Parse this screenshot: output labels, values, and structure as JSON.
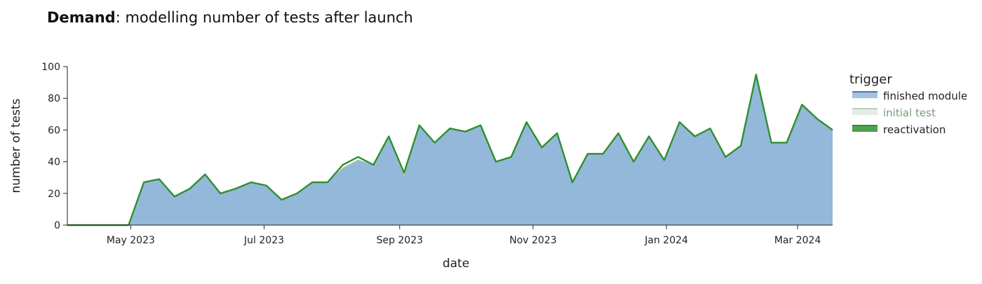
{
  "chart_data": {
    "type": "area",
    "title_bold": "Demand",
    "title_rest": ": modelling number of tests after launch",
    "xlabel": "date",
    "ylabel": "number of tests",
    "x_start": "2023-04-02",
    "x_end": "2024-03-17",
    "ylim": [
      0,
      100
    ],
    "yticks": [
      0,
      20,
      40,
      60,
      80,
      100
    ],
    "xticks": [
      {
        "date": "2023-05-01",
        "label": "May 2023"
      },
      {
        "date": "2023-07-01",
        "label": "Jul 2023"
      },
      {
        "date": "2023-09-01",
        "label": "Sep 2023"
      },
      {
        "date": "2023-11-01",
        "label": "Nov 2023"
      },
      {
        "date": "2024-01-01",
        "label": "Jan 2024"
      },
      {
        "date": "2024-03-01",
        "label": "Mar 2024"
      }
    ],
    "grid": false,
    "legend_title": "trigger",
    "legend_position": "right",
    "x": [
      "2023-04-02",
      "2023-04-09",
      "2023-04-16",
      "2023-04-23",
      "2023-04-30",
      "2023-05-07",
      "2023-05-14",
      "2023-05-21",
      "2023-05-28",
      "2023-06-04",
      "2023-06-11",
      "2023-06-18",
      "2023-06-25",
      "2023-07-02",
      "2023-07-09",
      "2023-07-16",
      "2023-07-23",
      "2023-07-30",
      "2023-08-06",
      "2023-08-13",
      "2023-08-20",
      "2023-08-27",
      "2023-09-03",
      "2023-09-10",
      "2023-09-17",
      "2023-09-24",
      "2023-10-01",
      "2023-10-08",
      "2023-10-15",
      "2023-10-22",
      "2023-10-29",
      "2023-11-05",
      "2023-11-12",
      "2023-11-19",
      "2023-11-26",
      "2023-12-03",
      "2023-12-10",
      "2023-12-17",
      "2023-12-24",
      "2023-12-31",
      "2024-01-07",
      "2024-01-14",
      "2024-01-21",
      "2024-01-28",
      "2024-02-04",
      "2024-02-11",
      "2024-02-18",
      "2024-02-25",
      "2024-03-03",
      "2024-03-10",
      "2024-03-17"
    ],
    "series": [
      {
        "name": "finished module",
        "color": "#93b8d9",
        "line_color": "#4a76a8",
        "values": [
          0,
          0,
          0,
          0,
          0,
          27,
          29,
          18,
          23,
          32,
          20,
          23,
          27,
          25,
          16,
          20,
          27,
          27,
          36,
          41,
          38,
          56,
          31,
          63,
          52,
          61,
          59,
          63,
          40,
          43,
          65,
          49,
          58,
          27,
          45,
          45,
          58,
          40,
          56,
          41,
          65,
          56,
          61,
          43,
          50,
          95,
          52,
          52,
          76,
          67,
          60
        ]
      },
      {
        "name": "initial test",
        "color": "#d9e6d9",
        "line_color": "#b8cfb8",
        "values": [
          0,
          0,
          0,
          0,
          0,
          0,
          0,
          0,
          0,
          0,
          0,
          0,
          0,
          0,
          0,
          0,
          0,
          0,
          0,
          0,
          0,
          0,
          0,
          0,
          0,
          0,
          0,
          0,
          0,
          0,
          0,
          0,
          0,
          0,
          0,
          0,
          0,
          0,
          0,
          0,
          0,
          0,
          0,
          0,
          0,
          0,
          0,
          0,
          0,
          0,
          0
        ]
      },
      {
        "name": "reactivation",
        "color": "#2f8f2f",
        "line_color": "#2f8f2f",
        "values": [
          0,
          0,
          0,
          0,
          0,
          0,
          0,
          0,
          0,
          0,
          0,
          0,
          0,
          0,
          0,
          0,
          0,
          0,
          2,
          2,
          0,
          0,
          2,
          0,
          0,
          0,
          0,
          0,
          0,
          0,
          0,
          0,
          0,
          0,
          0,
          0,
          0,
          0,
          0,
          0,
          0,
          0,
          0,
          0,
          0,
          0,
          0,
          0,
          0,
          0,
          0
        ]
      }
    ]
  }
}
